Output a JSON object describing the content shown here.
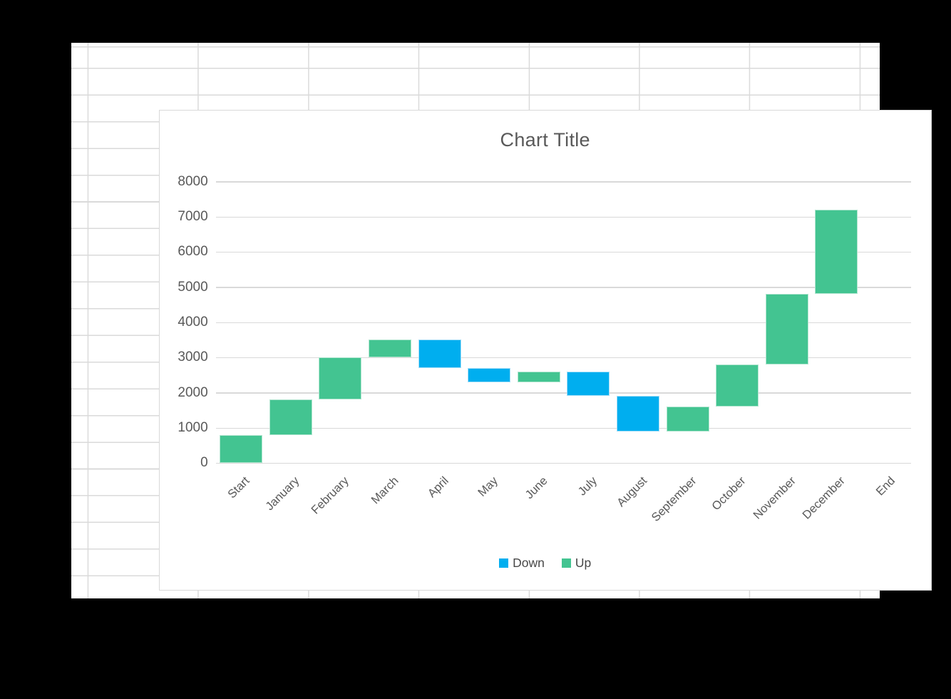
{
  "chart_data": {
    "type": "bar",
    "variant": "waterfall",
    "title": "Chart Title",
    "categories": [
      "Start",
      "January",
      "February",
      "March",
      "April",
      "May",
      "June",
      "July",
      "August",
      "September",
      "October",
      "November",
      "December",
      "End"
    ],
    "bars": [
      {
        "category": "Start",
        "series": "Up",
        "from": 0,
        "to": 800,
        "delta": 800
      },
      {
        "category": "January",
        "series": "Up",
        "from": 800,
        "to": 1800,
        "delta": 1000
      },
      {
        "category": "February",
        "series": "Up",
        "from": 1800,
        "to": 3000,
        "delta": 1200
      },
      {
        "category": "March",
        "series": "Up",
        "from": 3000,
        "to": 3500,
        "delta": 500
      },
      {
        "category": "April",
        "series": "Down",
        "from": 2700,
        "to": 3500,
        "delta": -800
      },
      {
        "category": "May",
        "series": "Down",
        "from": 2300,
        "to": 2700,
        "delta": -400
      },
      {
        "category": "June",
        "series": "Up",
        "from": 2300,
        "to": 2600,
        "delta": 300
      },
      {
        "category": "July",
        "series": "Down",
        "from": 1900,
        "to": 2600,
        "delta": -700
      },
      {
        "category": "August",
        "series": "Down",
        "from": 900,
        "to": 1900,
        "delta": -1000
      },
      {
        "category": "September",
        "series": "Up",
        "from": 900,
        "to": 1600,
        "delta": 700
      },
      {
        "category": "October",
        "series": "Up",
        "from": 1600,
        "to": 2800,
        "delta": 1200
      },
      {
        "category": "November",
        "series": "Up",
        "from": 2800,
        "to": 4800,
        "delta": 2000
      },
      {
        "category": "December",
        "series": "Up",
        "from": 4800,
        "to": 7200,
        "delta": 2400
      },
      {
        "category": "End",
        "series": null,
        "from": null,
        "to": null,
        "delta": null
      }
    ],
    "yticks": [
      0,
      1000,
      2000,
      3000,
      4000,
      5000,
      6000,
      7000,
      8000
    ],
    "ylim": [
      0,
      8000
    ],
    "grid": true,
    "legend_position": "bottom",
    "legend": [
      {
        "label": "Down",
        "color": "#00aeef"
      },
      {
        "label": "Up",
        "color": "#43c491"
      }
    ]
  },
  "colors": {
    "down": "#00aeef",
    "up": "#43c491",
    "gridline": "#d9d9d9",
    "sheet_line": "#dadada",
    "text": "#595959",
    "background": "#000000",
    "sheet": "#ffffff"
  }
}
